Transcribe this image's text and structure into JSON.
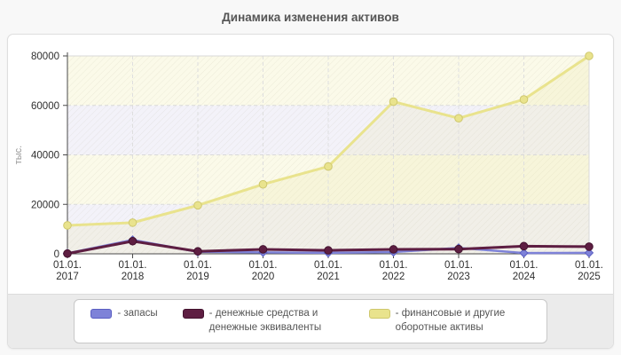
{
  "page": {
    "title": "Динамика изменения активов"
  },
  "chart_data": {
    "type": "line",
    "title": "Динамика изменения активов",
    "xlabel": "",
    "ylabel": "тыс.",
    "ylim": [
      0,
      80000
    ],
    "yticks": [
      0,
      20000,
      40000,
      60000,
      80000
    ],
    "x_label_prefix": "01.01.",
    "categories": [
      "2017",
      "2018",
      "2019",
      "2020",
      "2021",
      "2022",
      "2023",
      "2024",
      "2025"
    ],
    "grid": "dashed-horizontal-and-vertical",
    "legend_position": "bottom",
    "series": [
      {
        "name": "запасы",
        "color": "#7e82d8",
        "marker_stroke": "#5a5ec2",
        "marker": "diamond",
        "line_width": 2.5,
        "area": false,
        "values": [
          200,
          5600,
          800,
          600,
          400,
          700,
          2400,
          300,
          400
        ]
      },
      {
        "name": "денежные средства и денежные эквиваленты",
        "color": "#5e1e42",
        "marker_stroke": "#43122e",
        "marker": "circle",
        "line_width": 3,
        "area": false,
        "values": [
          100,
          5100,
          1000,
          1800,
          1400,
          1800,
          1900,
          3100,
          2900
        ]
      },
      {
        "name": "финансовые и другие оборотные активы",
        "color": "#e9e38d",
        "marker_stroke": "#cfc86e",
        "marker": "circle",
        "line_width": 3,
        "area": true,
        "values": [
          11500,
          12600,
          19600,
          28100,
          35300,
          61500,
          54800,
          62400,
          80000
        ]
      }
    ]
  },
  "legend": {
    "items": [
      {
        "label": "- запасы",
        "color": "#7e82d8",
        "border": "#5a5ec2"
      },
      {
        "label": "- денежные средства и денежные эквиваленты",
        "color": "#5e1e42",
        "border": "#43122e"
      },
      {
        "label": "- финансовые и другие оборотные активы",
        "color": "#e9e38d",
        "border": "#cfc86e"
      }
    ]
  }
}
